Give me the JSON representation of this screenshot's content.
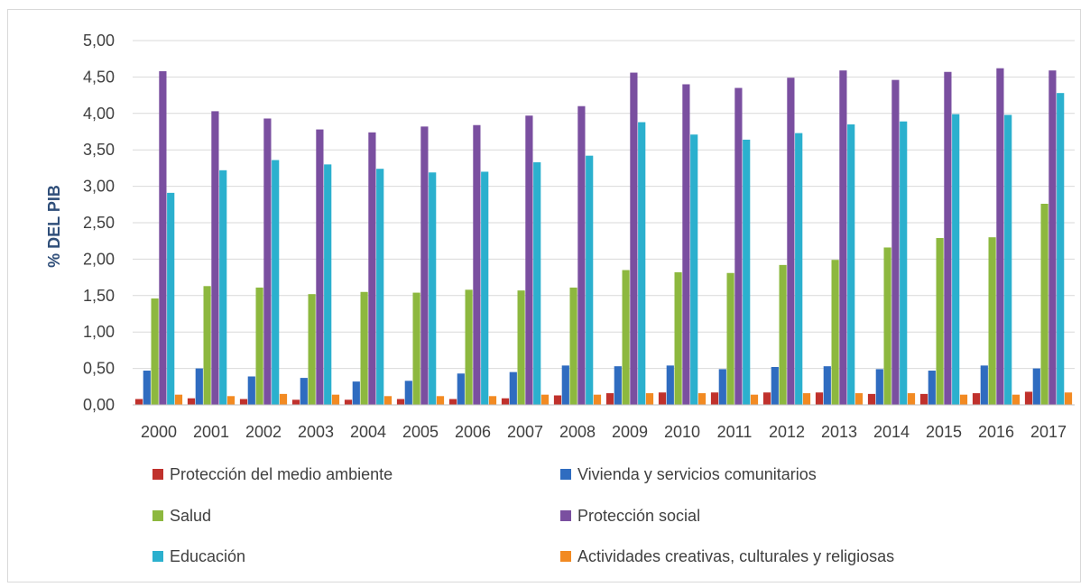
{
  "chart_data": {
    "type": "bar",
    "title": "",
    "xlabel": "",
    "ylabel": "% DEL PIB",
    "ylim": [
      0,
      5
    ],
    "yticks": [
      "0,00",
      "0,50",
      "1,00",
      "1,50",
      "2,00",
      "2,50",
      "3,00",
      "3,50",
      "4,00",
      "4,50",
      "5,00"
    ],
    "grid": true,
    "legend_position": "bottom",
    "categories": [
      "2000",
      "2001",
      "2002",
      "2003",
      "2004",
      "2005",
      "2006",
      "2007",
      "2008",
      "2009",
      "2010",
      "2011",
      "2012",
      "2013",
      "2014",
      "2015",
      "2016",
      "2017"
    ],
    "series": [
      {
        "name": "Protección del medio ambiente",
        "color": "#c0312c",
        "values": [
          0.08,
          0.09,
          0.08,
          0.07,
          0.07,
          0.08,
          0.08,
          0.09,
          0.13,
          0.16,
          0.17,
          0.17,
          0.17,
          0.17,
          0.15,
          0.15,
          0.16,
          0.18
        ]
      },
      {
        "name": "Vivienda y servicios comunitarios",
        "color": "#2f6cc0",
        "values": [
          0.47,
          0.5,
          0.39,
          0.37,
          0.32,
          0.33,
          0.43,
          0.45,
          0.54,
          0.53,
          0.54,
          0.49,
          0.52,
          0.53,
          0.49,
          0.47,
          0.54,
          0.5
        ]
      },
      {
        "name": "Salud",
        "color": "#8db83f",
        "values": [
          1.46,
          1.63,
          1.61,
          1.52,
          1.55,
          1.54,
          1.58,
          1.57,
          1.61,
          1.85,
          1.82,
          1.81,
          1.92,
          1.99,
          2.16,
          2.29,
          2.3,
          2.76
        ]
      },
      {
        "name": "Protección social",
        "color": "#7a4fa0",
        "values": [
          4.58,
          4.03,
          3.93,
          3.78,
          3.74,
          3.82,
          3.84,
          3.97,
          4.1,
          4.56,
          4.4,
          4.35,
          4.49,
          4.59,
          4.46,
          4.57,
          4.62,
          4.59
        ]
      },
      {
        "name": "Educación",
        "color": "#2bb0ce",
        "values": [
          2.91,
          3.22,
          3.36,
          3.3,
          3.24,
          3.19,
          3.2,
          3.33,
          3.42,
          3.88,
          3.71,
          3.64,
          3.73,
          3.85,
          3.89,
          3.99,
          3.98,
          4.28
        ]
      },
      {
        "name": "Actividades creativas, culturales y religiosas",
        "color": "#f28a22",
        "values": [
          0.14,
          0.12,
          0.15,
          0.14,
          0.12,
          0.12,
          0.12,
          0.14,
          0.14,
          0.16,
          0.16,
          0.14,
          0.16,
          0.16,
          0.16,
          0.14,
          0.14,
          0.17
        ]
      }
    ]
  }
}
